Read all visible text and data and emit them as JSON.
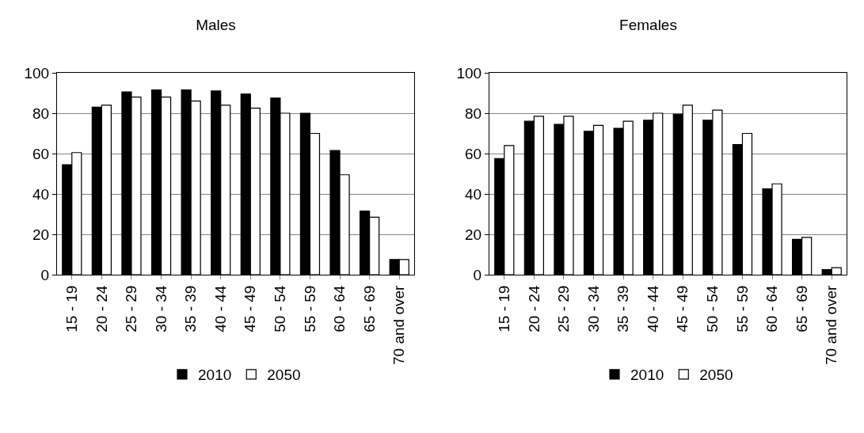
{
  "chart_data": [
    {
      "type": "bar",
      "title": "Males",
      "categories": [
        "15 - 19",
        "20 - 24",
        "25 - 29",
        "30 - 34",
        "35 - 39",
        "40 - 44",
        "45 - 49",
        "50 - 54",
        "55 - 59",
        "60 - 64",
        "65 - 69",
        "70 and over"
      ],
      "series": [
        {
          "name": "2010",
          "color": "#000000",
          "values": [
            54.5,
            83,
            90.5,
            91.5,
            91.5,
            91,
            89.5,
            87.5,
            80,
            61.5,
            31.5,
            7.5
          ]
        },
        {
          "name": "2050",
          "color": "#ffffff",
          "values": [
            60.5,
            84,
            88,
            88,
            86,
            84,
            82.5,
            80,
            70,
            49.5,
            28.5,
            7.5
          ]
        }
      ],
      "ylim": [
        0,
        100
      ],
      "yticks": [
        0,
        20,
        40,
        60,
        80,
        100
      ],
      "grid": "y",
      "legend": "bottom"
    },
    {
      "type": "bar",
      "title": "Females",
      "categories": [
        "15 - 19",
        "20 - 24",
        "25 - 29",
        "30 - 34",
        "35 - 39",
        "40 - 44",
        "45 - 49",
        "50 - 54",
        "55 - 59",
        "60 - 64",
        "65 - 69",
        "70 and over"
      ],
      "series": [
        {
          "name": "2010",
          "color": "#000000",
          "values": [
            57.5,
            76,
            74.5,
            71,
            72.5,
            76.5,
            79.5,
            76.5,
            64.5,
            42.5,
            17.5,
            2.5
          ]
        },
        {
          "name": "2050",
          "color": "#ffffff",
          "values": [
            64,
            78.5,
            78.5,
            74,
            76,
            80,
            84,
            81.5,
            70,
            45,
            18.5,
            3.5
          ]
        }
      ],
      "ylim": [
        0,
        100
      ],
      "yticks": [
        0,
        20,
        40,
        60,
        80,
        100
      ],
      "grid": "y",
      "legend": "bottom"
    }
  ]
}
